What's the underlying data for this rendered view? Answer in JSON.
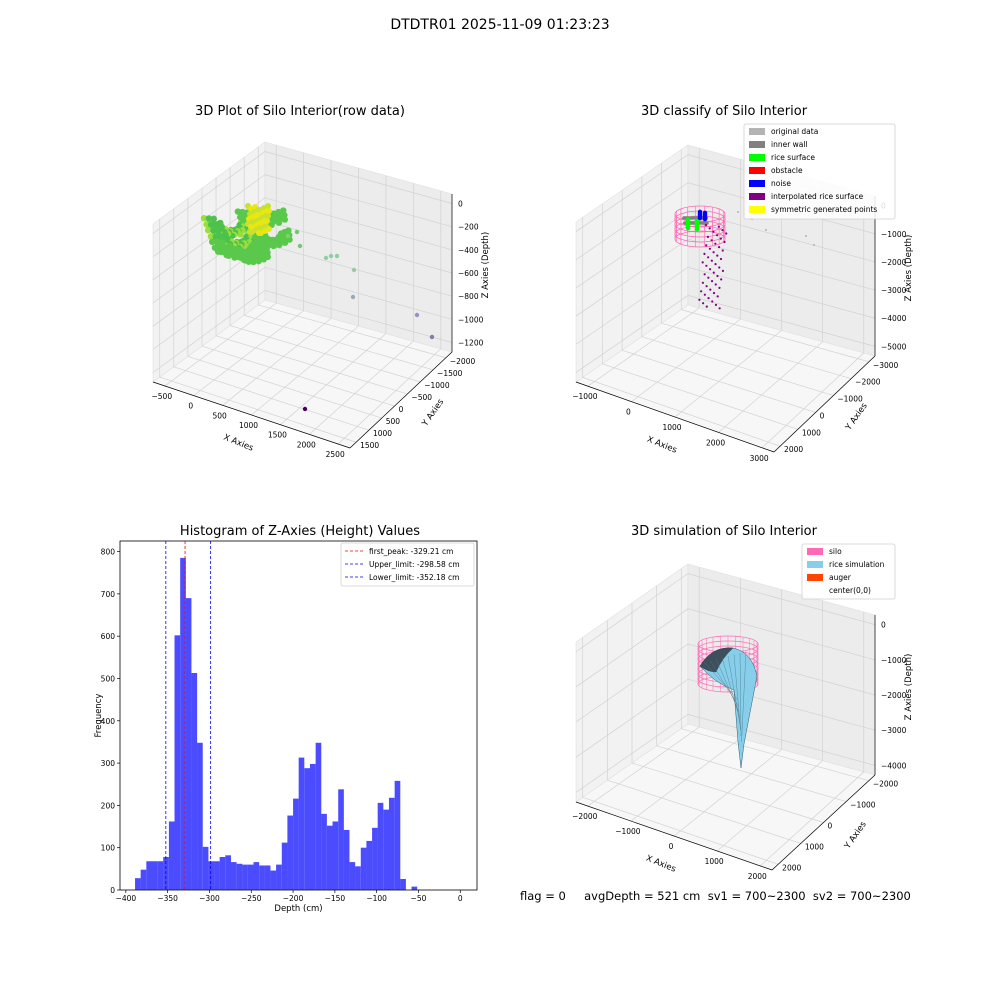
{
  "suptitle": "DTDTR01 2025-11-09 01:23:23",
  "footer": "flag = 0     avgDepth = 521 cm  sv1 = 700~2300  sv2 = 700~2300",
  "colors": {
    "original": "#b3b3b3",
    "inner_wall": "#808080",
    "rice_surface": "#00ff00",
    "obstacle": "#ff0000",
    "noise": "#0000ff",
    "interp": "#800080",
    "symmetric": "#ffff00",
    "silo": "#ff69b4",
    "rice_sim": "#87ceeb",
    "auger": "#ff4500",
    "hist": "#0000ff"
  },
  "chart_data": [
    {
      "type": "scatter",
      "title": "3D Plot of Silo Interior(row data)",
      "xlabel": "X Axies",
      "ylabel": "Y Axies",
      "zlabel": "Z Axies (Depth)",
      "x_ticks": [
        "−500",
        "0",
        "500",
        "1000",
        "1500",
        "2000",
        "2500"
      ],
      "y_ticks": [
        "−2000",
        "−1500",
        "−1000",
        "−500",
        "0",
        "500",
        "1000",
        "1500"
      ],
      "z_ticks": [
        "0",
        "−200",
        "−400",
        "−600",
        "−800",
        "−1000",
        "−1200"
      ]
    },
    {
      "type": "scatter",
      "title": "3D classify of Silo Interior",
      "xlabel": "X Axies",
      "ylabel": "Y Axies",
      "zlabel": "Z Axies (Depth)",
      "x_ticks": [
        "−1000",
        "0",
        "1000",
        "2000",
        "3000"
      ],
      "y_ticks": [
        "−3000",
        "−2000",
        "−1000",
        "0",
        "1000",
        "2000"
      ],
      "z_ticks": [
        "0",
        "−1000",
        "−2000",
        "−3000",
        "−4000",
        "−5000"
      ],
      "legend": [
        "original data",
        "inner wall",
        "rice surface",
        "obstacle",
        "noise",
        "interpolated rice surface",
        "symmetric generated points"
      ],
      "legend_position": "top-right"
    },
    {
      "type": "bar",
      "title": "Histogram of Z-Axies (Height) Values",
      "xlabel": "Depth (cm)",
      "ylabel": "Frequency",
      "xlim": [
        -400,
        0
      ],
      "ylim": [
        0,
        800
      ],
      "x_ticks": [
        -400,
        -350,
        -300,
        -250,
        -200,
        -150,
        -100,
        -50,
        0
      ],
      "y_ticks": [
        0,
        100,
        200,
        300,
        400,
        500,
        600,
        700,
        800
      ],
      "bin_width": 6.75,
      "bins": [
        [
          -389.0,
          28
        ],
        [
          -382.3,
          48
        ],
        [
          -375.5,
          68
        ],
        [
          -368.8,
          68
        ],
        [
          -362.0,
          68
        ],
        [
          -355.3,
          78
        ],
        [
          -348.5,
          162
        ],
        [
          -341.8,
          602
        ],
        [
          -335.0,
          785
        ],
        [
          -328.3,
          690
        ],
        [
          -321.5,
          513
        ],
        [
          -314.8,
          348
        ],
        [
          -308.0,
          102
        ],
        [
          -301.3,
          68
        ],
        [
          -294.5,
          68
        ],
        [
          -287.8,
          78
        ],
        [
          -281.0,
          82
        ],
        [
          -274.3,
          66
        ],
        [
          -267.5,
          62
        ],
        [
          -260.8,
          60
        ],
        [
          -254.0,
          60
        ],
        [
          -247.3,
          66
        ],
        [
          -240.5,
          58
        ],
        [
          -233.8,
          58
        ],
        [
          -227.0,
          46
        ],
        [
          -220.3,
          60
        ],
        [
          -213.5,
          112
        ],
        [
          -206.8,
          176
        ],
        [
          -200.0,
          216
        ],
        [
          -193.3,
          313
        ],
        [
          -186.5,
          288
        ],
        [
          -179.8,
          298
        ],
        [
          -173.0,
          348
        ],
        [
          -166.3,
          180
        ],
        [
          -159.5,
          152
        ],
        [
          -152.8,
          162
        ],
        [
          -146.0,
          238
        ],
        [
          -139.3,
          142
        ],
        [
          -132.5,
          66
        ],
        [
          -125.8,
          56
        ],
        [
          -119.0,
          100
        ],
        [
          -112.3,
          116
        ],
        [
          -105.5,
          147
        ],
        [
          -98.8,
          206
        ],
        [
          -92.0,
          190
        ],
        [
          -85.3,
          218
        ],
        [
          -78.5,
          258
        ],
        [
          -71.8,
          26
        ],
        [
          -65.0,
          0
        ],
        [
          -58.3,
          8
        ]
      ],
      "series": [
        {
          "name": "first_peak: -329.21 cm",
          "x": -329.21,
          "color": "#ff0000"
        },
        {
          "name": "Upper_limit: -298.58 cm",
          "x": -298.58,
          "color": "#0000ff"
        },
        {
          "name": "Lower_limit: -352.18 cm",
          "x": -352.18,
          "color": "#0000ff"
        }
      ],
      "legend_position": "top-right"
    },
    {
      "type": "area",
      "title": "3D simulation of Silo Interior",
      "xlabel": "X Axies",
      "ylabel": "Y Axies",
      "zlabel": "Z Axies (Depth)",
      "x_ticks": [
        "−2000",
        "−1000",
        "0",
        "1000",
        "2000"
      ],
      "y_ticks": [
        "−2000",
        "−1000",
        "0",
        "1000",
        "2000"
      ],
      "z_ticks": [
        "0",
        "−1000",
        "−2000",
        "−3000",
        "−4000"
      ],
      "legend": [
        "silo",
        "rice simulation",
        "auger",
        "center(0,0)"
      ],
      "legend_position": "top-right"
    }
  ]
}
